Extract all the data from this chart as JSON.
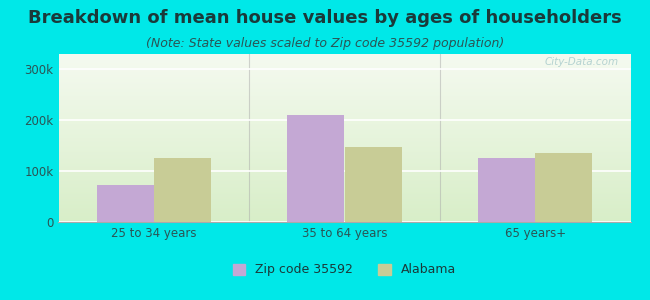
{
  "title": "Breakdown of mean house values by ages of householders",
  "subtitle": "(Note: State values scaled to Zip code 35592 population)",
  "categories": [
    "25 to 34 years",
    "35 to 64 years",
    "65 years+"
  ],
  "zip_values": [
    72000,
    210000,
    125000
  ],
  "alabama_values": [
    125000,
    148000,
    135000
  ],
  "zip_color": "#c4a8d4",
  "alabama_color": "#c8cc96",
  "background_color": "#00e8e8",
  "plot_bg_top": "#f5faf0",
  "plot_bg_bottom": "#d8eec8",
  "ylim": [
    0,
    330000
  ],
  "yticks": [
    0,
    100000,
    200000,
    300000
  ],
  "ytick_labels": [
    "0",
    "100k",
    "200k",
    "300k"
  ],
  "title_fontsize": 13,
  "subtitle_fontsize": 9,
  "legend_entries": [
    "Zip code 35592",
    "Alabama"
  ],
  "bar_width": 0.3,
  "watermark": "City-Data.com",
  "title_color": "#1a3a3a",
  "subtitle_color": "#2a5555",
  "tick_color": "#2a5555",
  "grid_color": "#ffffff",
  "separator_color": "#aaaaaa"
}
